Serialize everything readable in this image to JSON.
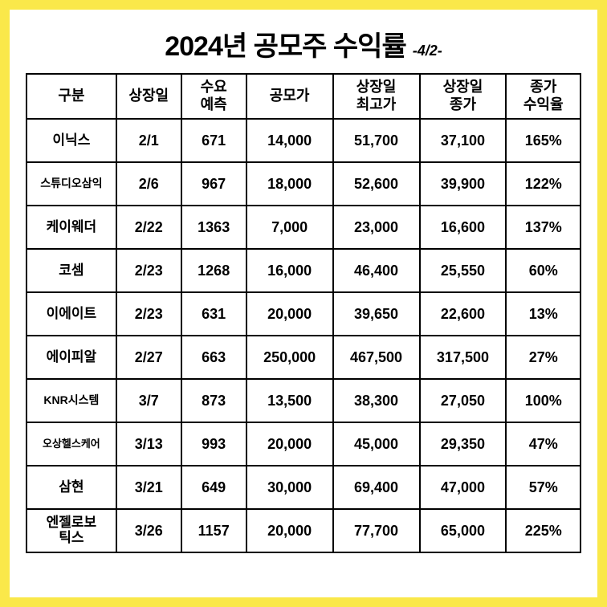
{
  "header": {
    "title": "2024년 공모주 수익률",
    "subtitle": "-4/2-"
  },
  "table": {
    "columns": [
      {
        "label": "구분",
        "width": "14.5%"
      },
      {
        "label": "상장일",
        "width": "10.5%"
      },
      {
        "label": "수요\n예측",
        "width": "10.5%"
      },
      {
        "label": "공모가",
        "width": "14%"
      },
      {
        "label": "상장일\n최고가",
        "width": "14%"
      },
      {
        "label": "상장일\n종가",
        "width": "14%"
      },
      {
        "label": "종가\n수익율",
        "width": "12%"
      }
    ],
    "rows": [
      {
        "name": "이닉스",
        "date": "2/1",
        "demand": "671",
        "price": "14,000",
        "high": "51,700",
        "close": "37,100",
        "return": "165%",
        "nameClass": ""
      },
      {
        "name": "스튜디오삼익",
        "date": "2/6",
        "demand": "967",
        "price": "18,000",
        "high": "52,600",
        "close": "39,900",
        "return": "122%",
        "nameClass": "name-small"
      },
      {
        "name": "케이웨더",
        "date": "2/22",
        "demand": "1363",
        "price": "7,000",
        "high": "23,000",
        "close": "16,600",
        "return": "137%",
        "nameClass": ""
      },
      {
        "name": "코셈",
        "date": "2/23",
        "demand": "1268",
        "price": "16,000",
        "high": "46,400",
        "close": "25,550",
        "return": "60%",
        "nameClass": ""
      },
      {
        "name": "이에이트",
        "date": "2/23",
        "demand": "631",
        "price": "20,000",
        "high": "39,650",
        "close": "22,600",
        "return": "13%",
        "nameClass": ""
      },
      {
        "name": "에이피알",
        "date": "2/27",
        "demand": "663",
        "price": "250,000",
        "high": "467,500",
        "close": "317,500",
        "return": "27%",
        "nameClass": ""
      },
      {
        "name": "KNR시스템",
        "date": "3/7",
        "demand": "873",
        "price": "13,500",
        "high": "38,300",
        "close": "27,050",
        "return": "100%",
        "nameClass": "name-small"
      },
      {
        "name": "오상헬스케어",
        "date": "3/13",
        "demand": "993",
        "price": "20,000",
        "high": "45,000",
        "close": "29,350",
        "return": "47%",
        "nameClass": "name-xsmall"
      },
      {
        "name": "삼현",
        "date": "3/21",
        "demand": "649",
        "price": "30,000",
        "high": "69,400",
        "close": "47,000",
        "return": "57%",
        "nameClass": ""
      },
      {
        "name": "엔젤로보\n틱스",
        "date": "3/26",
        "demand": "1157",
        "price": "20,000",
        "high": "77,700",
        "close": "65,000",
        "return": "225%",
        "nameClass": ""
      }
    ],
    "border_color": "#000000",
    "background_color": "#ffffff",
    "outer_background": "#fae84a",
    "cell_fontsize": 18,
    "header_fontsize": 18,
    "font_weight": 900
  }
}
